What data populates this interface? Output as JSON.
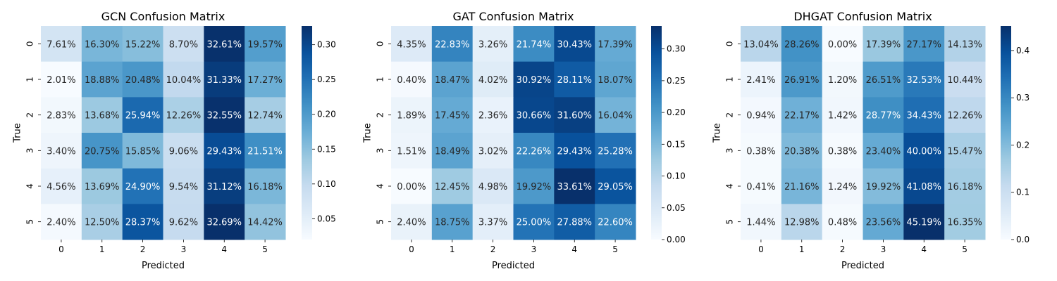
{
  "chart_data": [
    {
      "type": "heatmap",
      "title": "GCN Confusion Matrix",
      "xlabel": "Predicted",
      "ylabel": "True",
      "x_categories": [
        "0",
        "1",
        "2",
        "3",
        "4",
        "5"
      ],
      "y_categories": [
        "0",
        "1",
        "2",
        "3",
        "4",
        "5"
      ],
      "values": [
        [
          0.0761,
          0.163,
          0.1522,
          0.087,
          0.3261,
          0.1957
        ],
        [
          0.0201,
          0.1888,
          0.2048,
          0.1004,
          0.3133,
          0.1727
        ],
        [
          0.0283,
          0.1368,
          0.2594,
          0.1226,
          0.3255,
          0.1274
        ],
        [
          0.034,
          0.2075,
          0.1585,
          0.0906,
          0.2943,
          0.2151
        ],
        [
          0.0456,
          0.1369,
          0.249,
          0.0954,
          0.3112,
          0.1618
        ],
        [
          0.024,
          0.125,
          0.2837,
          0.0962,
          0.3269,
          0.1442
        ]
      ],
      "cell_labels": [
        [
          "7.61%",
          "16.30%",
          "15.22%",
          "8.70%",
          "32.61%",
          "19.57%"
        ],
        [
          "2.01%",
          "18.88%",
          "20.48%",
          "10.04%",
          "31.33%",
          "17.27%"
        ],
        [
          "2.83%",
          "13.68%",
          "25.94%",
          "12.26%",
          "32.55%",
          "12.74%"
        ],
        [
          "3.40%",
          "20.75%",
          "15.85%",
          "9.06%",
          "29.43%",
          "21.51%"
        ],
        [
          "4.56%",
          "13.69%",
          "24.90%",
          "9.54%",
          "31.12%",
          "16.18%"
        ],
        [
          "2.40%",
          "12.50%",
          "28.37%",
          "9.62%",
          "32.69%",
          "14.42%"
        ]
      ],
      "colorbar": {
        "colormap": "Blues",
        "vmin": 0.0201,
        "vmax": 0.3269,
        "ticks": [
          0.05,
          0.1,
          0.15,
          0.2,
          0.25,
          0.3
        ],
        "tick_labels": [
          "0.05",
          "0.10",
          "0.15",
          "0.20",
          "0.25",
          "0.30"
        ]
      }
    },
    {
      "type": "heatmap",
      "title": "GAT Confusion Matrix",
      "xlabel": "Predicted",
      "ylabel": "True",
      "x_categories": [
        "0",
        "1",
        "2",
        "3",
        "4",
        "5"
      ],
      "y_categories": [
        "0",
        "1",
        "2",
        "3",
        "4",
        "5"
      ],
      "values": [
        [
          0.0435,
          0.2283,
          0.0326,
          0.2174,
          0.3043,
          0.1739
        ],
        [
          0.004,
          0.1847,
          0.0402,
          0.3092,
          0.2811,
          0.1807
        ],
        [
          0.0189,
          0.1745,
          0.0236,
          0.3066,
          0.316,
          0.1604
        ],
        [
          0.0151,
          0.1849,
          0.0302,
          0.2226,
          0.2943,
          0.2528
        ],
        [
          0.0,
          0.1245,
          0.0498,
          0.1992,
          0.3361,
          0.2905
        ],
        [
          0.024,
          0.1875,
          0.0337,
          0.25,
          0.2788,
          0.226
        ]
      ],
      "cell_labels": [
        [
          "4.35%",
          "22.83%",
          "3.26%",
          "21.74%",
          "30.43%",
          "17.39%"
        ],
        [
          "0.40%",
          "18.47%",
          "4.02%",
          "30.92%",
          "28.11%",
          "18.07%"
        ],
        [
          "1.89%",
          "17.45%",
          "2.36%",
          "30.66%",
          "31.60%",
          "16.04%"
        ],
        [
          "1.51%",
          "18.49%",
          "3.02%",
          "22.26%",
          "29.43%",
          "25.28%"
        ],
        [
          "0.00%",
          "12.45%",
          "4.98%",
          "19.92%",
          "33.61%",
          "29.05%"
        ],
        [
          "2.40%",
          "18.75%",
          "3.37%",
          "25.00%",
          "27.88%",
          "22.60%"
        ]
      ],
      "colorbar": {
        "colormap": "Blues",
        "vmin": 0.0,
        "vmax": 0.3361,
        "ticks": [
          0.0,
          0.05,
          0.1,
          0.15,
          0.2,
          0.25,
          0.3
        ],
        "tick_labels": [
          "0.00",
          "0.05",
          "0.10",
          "0.15",
          "0.20",
          "0.25",
          "0.30"
        ]
      }
    },
    {
      "type": "heatmap",
      "title": "DHGAT Confusion Matrix",
      "xlabel": "Predicted",
      "ylabel": "True",
      "x_categories": [
        "0",
        "1",
        "2",
        "3",
        "4",
        "5"
      ],
      "y_categories": [
        "0",
        "1",
        "2",
        "3",
        "4",
        "5"
      ],
      "values": [
        [
          0.1304,
          0.2826,
          0.0,
          0.1739,
          0.2717,
          0.1413
        ],
        [
          0.0241,
          0.2691,
          0.012,
          0.2651,
          0.3253,
          0.1044
        ],
        [
          0.0094,
          0.2217,
          0.0142,
          0.2877,
          0.3443,
          0.1226
        ],
        [
          0.0038,
          0.2038,
          0.0038,
          0.234,
          0.4,
          0.1547
        ],
        [
          0.0041,
          0.2116,
          0.0124,
          0.1992,
          0.4108,
          0.1618
        ],
        [
          0.0144,
          0.1298,
          0.0048,
          0.2356,
          0.4519,
          0.1635
        ]
      ],
      "cell_labels": [
        [
          "13.04%",
          "28.26%",
          "0.00%",
          "17.39%",
          "27.17%",
          "14.13%"
        ],
        [
          "2.41%",
          "26.91%",
          "1.20%",
          "26.51%",
          "32.53%",
          "10.44%"
        ],
        [
          "0.94%",
          "22.17%",
          "1.42%",
          "28.77%",
          "34.43%",
          "12.26%"
        ],
        [
          "0.38%",
          "20.38%",
          "0.38%",
          "23.40%",
          "40.00%",
          "15.47%"
        ],
        [
          "0.41%",
          "21.16%",
          "1.24%",
          "19.92%",
          "41.08%",
          "16.18%"
        ],
        [
          "1.44%",
          "12.98%",
          "0.48%",
          "23.56%",
          "45.19%",
          "16.35%"
        ]
      ],
      "colorbar": {
        "colormap": "Blues",
        "vmin": 0.0,
        "vmax": 0.4519,
        "ticks": [
          0.0,
          0.1,
          0.2,
          0.3,
          0.4
        ],
        "tick_labels": [
          "0.0",
          "0.1",
          "0.2",
          "0.3",
          "0.4"
        ]
      }
    }
  ]
}
